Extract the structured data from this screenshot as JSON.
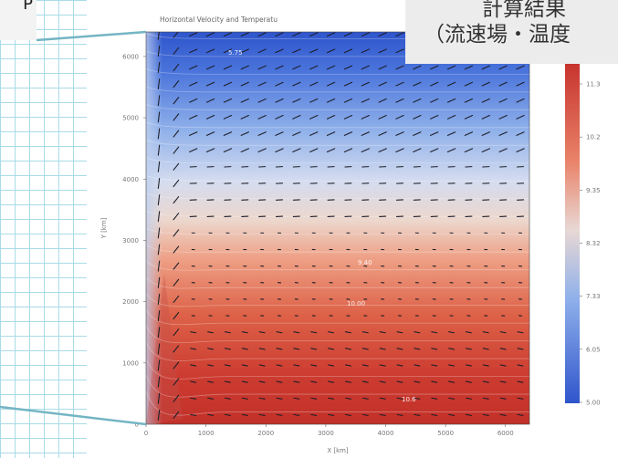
{
  "slide": {
    "left_label": "P",
    "callout_line1": "計算結果",
    "callout_line2": "（流速場・温度"
  },
  "chart_data": {
    "type": "heatmap",
    "title": "Horizontal Velocity and Temperatu",
    "xlabel": "X [km]",
    "ylabel": "Y [km]",
    "xlim": [
      0,
      6400
    ],
    "ylim": [
      0,
      6400
    ],
    "x_ticks": [
      "0",
      "1000",
      "2000",
      "3000",
      "4000",
      "5000",
      "6000"
    ],
    "y_ticks": [
      "0",
      "1000",
      "2000",
      "3000",
      "4000",
      "5000",
      "6000"
    ],
    "colorbar_ticks": [
      "11.3",
      "10.2",
      "9.35",
      "8.32",
      "7.33",
      "6.05",
      "5.00"
    ],
    "contour_labels": [
      "5.75",
      "9.40",
      "10.00",
      "10.6"
    ],
    "colors": {
      "cold": "#3b5fcf",
      "neutral": "#e6e2e4",
      "warm": "#cc3b33"
    },
    "grid": false
  }
}
